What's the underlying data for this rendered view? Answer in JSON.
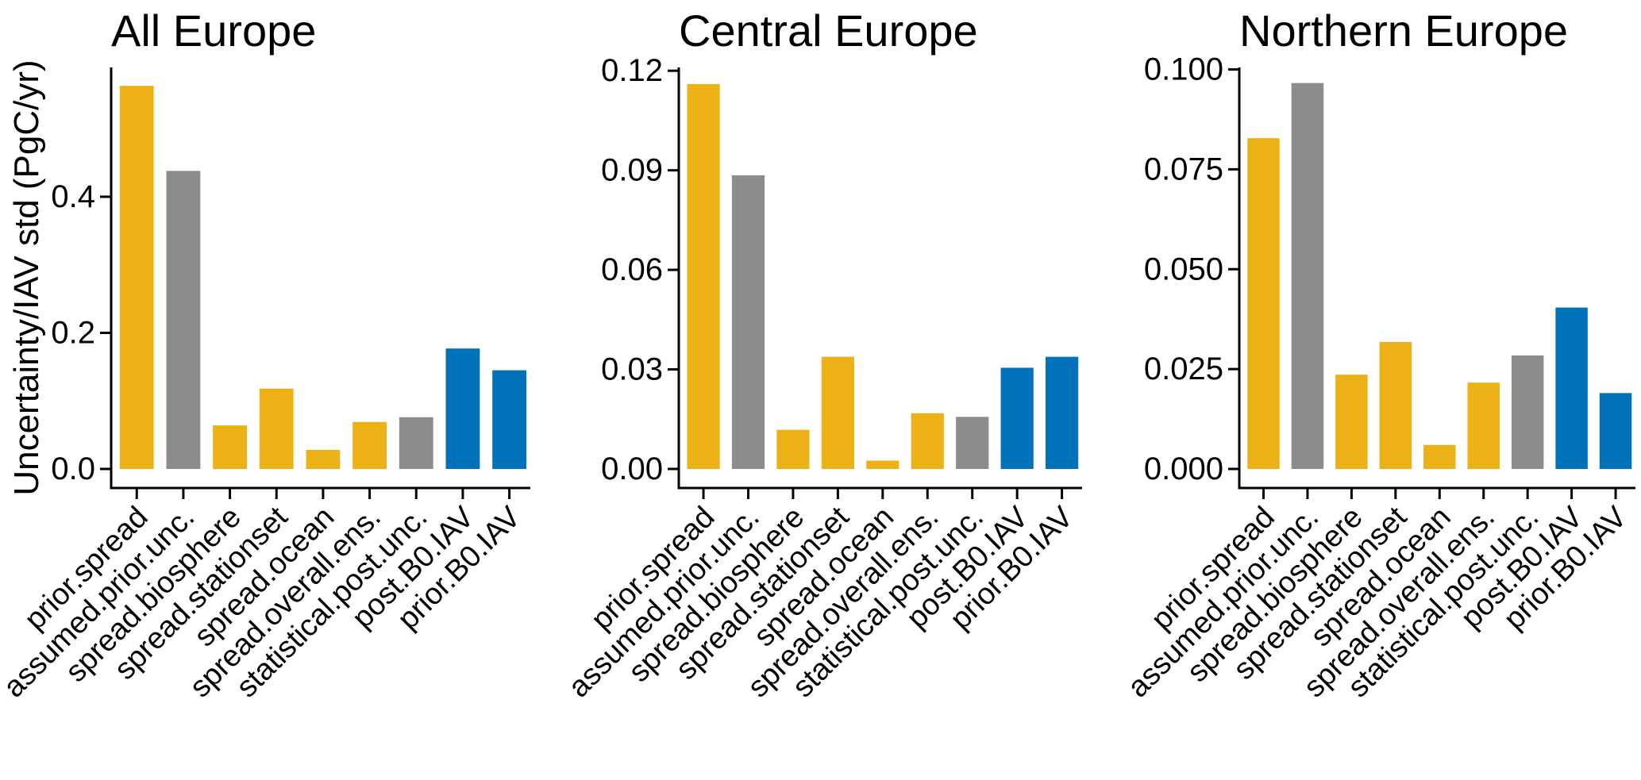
{
  "figure": {
    "y_axis_label": "Uncertainty/IAV std (PgC/yr)"
  },
  "palette": {
    "yellow": "#EBB116",
    "gray": "#8C8C8C",
    "blue": "#0072B9",
    "axis": "#000000",
    "background": "#FFFFFF"
  },
  "bar_color_keys": [
    "yellow",
    "gray",
    "yellow",
    "yellow",
    "yellow",
    "yellow",
    "gray",
    "blue",
    "blue"
  ],
  "chart_data": [
    {
      "type": "bar",
      "title": "All Europe",
      "categories": [
        "prior.spread",
        "assumed.prior.unc.",
        "spread.biosphere",
        "spread.stationset",
        "spread.ocean",
        "spread.overall.ens.",
        "statistical.post.unc.",
        "post.B0.IAV",
        "prior.B0.IAV"
      ],
      "values": [
        0.563,
        0.438,
        0.064,
        0.118,
        0.028,
        0.069,
        0.076,
        0.177,
        0.145
      ],
      "ylabel": "Uncertainty/IAV std (PgC/yr)",
      "ytick_values": [
        0.0,
        0.2,
        0.4
      ],
      "ytick_labels": [
        "0.0",
        "0.2",
        "0.4"
      ],
      "ylim": [
        0,
        0.59
      ],
      "grid": false,
      "legend": "none"
    },
    {
      "type": "bar",
      "title": "Central Europe",
      "categories": [
        "prior.spread",
        "assumed.prior.unc.",
        "spread.biosphere",
        "spread.stationset",
        "spread.ocean",
        "spread.overall.ens.",
        "statistical.post.unc.",
        "post.B0.IAV",
        "prior.B0.IAV"
      ],
      "values": [
        0.116,
        0.0885,
        0.0118,
        0.0338,
        0.0025,
        0.0168,
        0.0157,
        0.0305,
        0.0338
      ],
      "ylabel": "",
      "ytick_values": [
        0.0,
        0.03,
        0.06,
        0.09,
        0.12
      ],
      "ytick_labels": [
        "0.00",
        "0.03",
        "0.06",
        "0.09",
        "0.12"
      ],
      "ylim": [
        0,
        0.121
      ],
      "grid": false,
      "legend": "none"
    },
    {
      "type": "bar",
      "title": "Northern Europe",
      "categories": [
        "prior.spread",
        "assumed.prior.unc.",
        "spread.biosphere",
        "spread.stationset",
        "spread.ocean",
        "spread.overall.ens.",
        "statistical.post.unc.",
        "post.B0.IAV",
        "prior.B0.IAV"
      ],
      "values": [
        0.0828,
        0.0966,
        0.0236,
        0.0318,
        0.006,
        0.0216,
        0.0284,
        0.0404,
        0.019
      ],
      "ylabel": "",
      "ytick_values": [
        0.0,
        0.025,
        0.05,
        0.075,
        0.1
      ],
      "ytick_labels": [
        "0.000",
        "0.025",
        "0.050",
        "0.075",
        "0.100"
      ],
      "ylim": [
        0,
        0.1005
      ],
      "grid": false,
      "legend": "none"
    }
  ]
}
